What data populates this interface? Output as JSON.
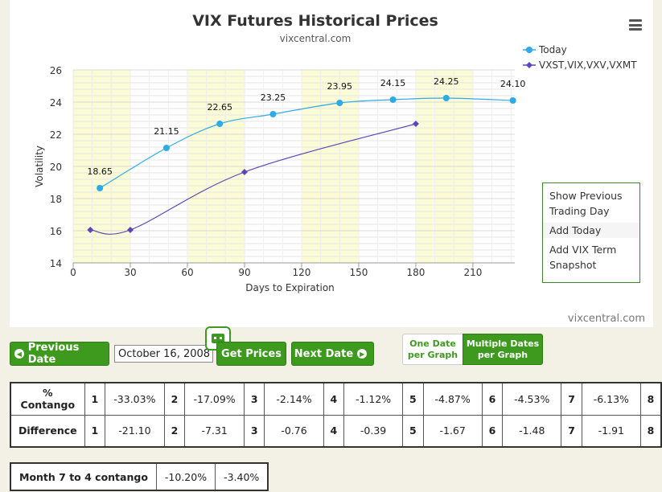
{
  "chart_data": {
    "type": "line",
    "title": "VIX Futures Historical Prices",
    "subtitle": "vixcentral.com",
    "xlabel": "Days to Expiration",
    "ylabel": "Volatility",
    "xlim": [
      0,
      232
    ],
    "ylim": [
      14,
      26
    ],
    "x_ticks": [
      0,
      30,
      60,
      90,
      120,
      150,
      180,
      210
    ],
    "y_ticks": [
      14,
      16,
      18,
      20,
      22,
      24,
      26
    ],
    "grid": true,
    "legend_position": "top-right",
    "series": [
      {
        "name": "Today",
        "color": "#2eaae5",
        "marker": "circle",
        "points": [
          [
            14,
            18.65
          ],
          [
            49,
            21.15
          ],
          [
            77,
            22.65
          ],
          [
            105,
            23.25
          ],
          [
            140,
            23.95
          ],
          [
            168,
            24.15
          ],
          [
            196,
            24.25
          ],
          [
            231,
            24.1
          ]
        ],
        "labels": [
          "18.65",
          "21.15",
          "22.65",
          "23.25",
          "23.95",
          "24.15",
          "24.25",
          "24.10"
        ]
      },
      {
        "name": "VXST,VIX,VXV,VXMT",
        "color": "#5b47b6",
        "marker": "diamond",
        "points": [
          [
            9,
            16.05
          ],
          [
            30,
            16.05
          ],
          [
            90,
            19.65
          ],
          [
            180,
            22.65
          ]
        ]
      }
    ],
    "shaded_bands_x": [
      [
        0,
        30
      ],
      [
        60,
        90
      ],
      [
        120,
        150
      ],
      [
        180,
        210
      ]
    ],
    "credit": "vixcentral.com"
  },
  "menu": {
    "items": [
      "Show Previous Trading Day",
      "Add Today",
      "Add VIX Term Snapshot"
    ]
  },
  "controls": {
    "prev_label": "Previous Date",
    "date_value": "October 16, 2008",
    "get_prices_label": "Get Prices",
    "next_label": "Next Date",
    "toggle_one": "One Date per Graph",
    "toggle_multi": "Multiple Dates per Graph"
  },
  "contango_table": {
    "row1_label": "% Contango",
    "row2_label": "Difference",
    "months": [
      "1",
      "2",
      "3",
      "4",
      "5",
      "6",
      "7",
      "8"
    ],
    "contango": [
      "-33.03%",
      "-17.09%",
      "-2.14%",
      "-1.12%",
      "-4.87%",
      "-4.53%",
      "-6.13%"
    ],
    "difference": [
      "-21.10",
      "-7.31",
      "-0.76",
      "-0.39",
      "-1.67",
      "-1.48",
      "-1.91"
    ]
  },
  "month74": {
    "label": "Month 7 to 4 contango",
    "values": [
      "-10.20%",
      "-3.40%"
    ]
  }
}
